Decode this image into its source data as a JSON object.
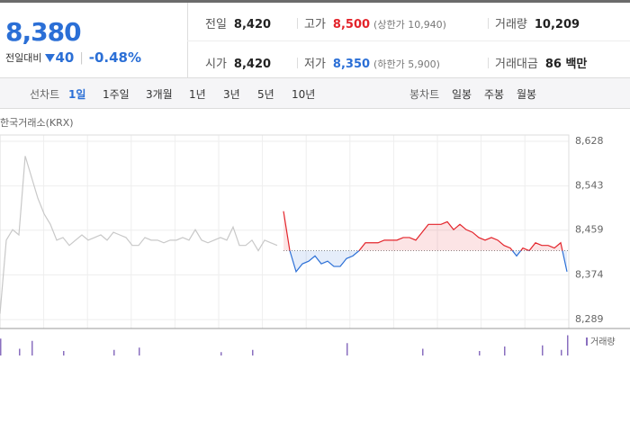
{
  "header": {
    "price": "8,380",
    "change_label": "전일대비",
    "change": "40",
    "change_rate": "-0.48%"
  },
  "summary": {
    "rows": [
      [
        [
          "전일",
          "8,420",
          null
        ],
        [
          "고가",
          "8,500",
          "(상한가 10,940)"
        ],
        [
          "거래량",
          "10,209",
          null
        ]
      ],
      [
        [
          "시가",
          "8,420",
          null
        ],
        [
          "저가",
          "8,350",
          "(하한가 5,900)"
        ],
        [
          "거래대금",
          "86 백만",
          null
        ]
      ]
    ]
  },
  "tabs": {
    "line_label": "선차트",
    "line": [
      "1일",
      "1주일",
      "3개월",
      "1년",
      "3년",
      "5년",
      "10년"
    ],
    "candle_label": "봉차트",
    "candle": [
      "일봉",
      "주봉",
      "월봉"
    ]
  },
  "chart_data": {
    "type": "line",
    "source": "한국거래소(KRX)",
    "baseline": 8420,
    "ylim": [
      8272,
      8640
    ],
    "yticks": [
      {
        "value": 8628,
        "label": "8,628"
      },
      {
        "value": 8543,
        "label": "8,543"
      },
      {
        "value": 8459,
        "label": "8,459"
      },
      {
        "value": 8374,
        "label": "8,374"
      },
      {
        "value": 8289,
        "label": "8,289"
      }
    ],
    "grid": true,
    "series": [
      {
        "color": "#c8c8c8",
        "values": [
          8300,
          8440,
          8460,
          8450,
          8600,
          8560,
          8520,
          8490,
          8470,
          8440,
          8445,
          8430,
          8440,
          8450,
          8440,
          8445,
          8450,
          8440,
          8455,
          8450,
          8445,
          8430,
          8430,
          8445,
          8440,
          8440,
          8435,
          8440,
          8440,
          8445,
          8440,
          8460,
          8440,
          8435,
          8440,
          8445,
          8440,
          8465,
          8430,
          8430,
          8440,
          8420,
          8440,
          8435,
          8430,
          null,
          null,
          null,
          null,
          null,
          null,
          null,
          null,
          null,
          null,
          null,
          null,
          null,
          null,
          null,
          null,
          null,
          null,
          null,
          null,
          null,
          null,
          null,
          null,
          null,
          null,
          null,
          null,
          null,
          null,
          null,
          null,
          null,
          null,
          null,
          null,
          null,
          null,
          null,
          null,
          null,
          null,
          null,
          null,
          null,
          null
        ]
      },
      {
        "color": "#e3242b",
        "color_down": "#2b6fd6",
        "values": [
          null,
          null,
          null,
          null,
          null,
          null,
          null,
          null,
          null,
          null,
          null,
          null,
          null,
          null,
          null,
          null,
          null,
          null,
          null,
          null,
          null,
          null,
          null,
          null,
          null,
          null,
          null,
          null,
          null,
          null,
          null,
          null,
          null,
          null,
          null,
          null,
          null,
          null,
          null,
          null,
          null,
          null,
          null,
          null,
          null,
          8495,
          8420,
          8380,
          8395,
          8400,
          8410,
          8395,
          8400,
          8390,
          8390,
          8405,
          8410,
          8420,
          8435,
          8435,
          8435,
          8440,
          8440,
          8440,
          8445,
          8445,
          8440,
          8455,
          8470,
          8470,
          8470,
          8475,
          8460,
          8470,
          8460,
          8455,
          8445,
          8440,
          8445,
          8440,
          8430,
          8425,
          8410,
          8425,
          8420,
          8435,
          8430,
          8430,
          8425,
          8435,
          8380
        ]
      }
    ],
    "volume": {
      "label": "거래량",
      "color": "#8a6fbf",
      "x": [
        0,
        3,
        5,
        10,
        18,
        22,
        35,
        40,
        55,
        67,
        76,
        80,
        86,
        89,
        90
      ],
      "values": [
        30,
        12,
        26,
        8,
        10,
        14,
        6,
        10,
        22,
        12,
        8,
        16,
        18,
        10,
        36
      ],
      "ylim": [
        0,
        40
      ]
    }
  }
}
